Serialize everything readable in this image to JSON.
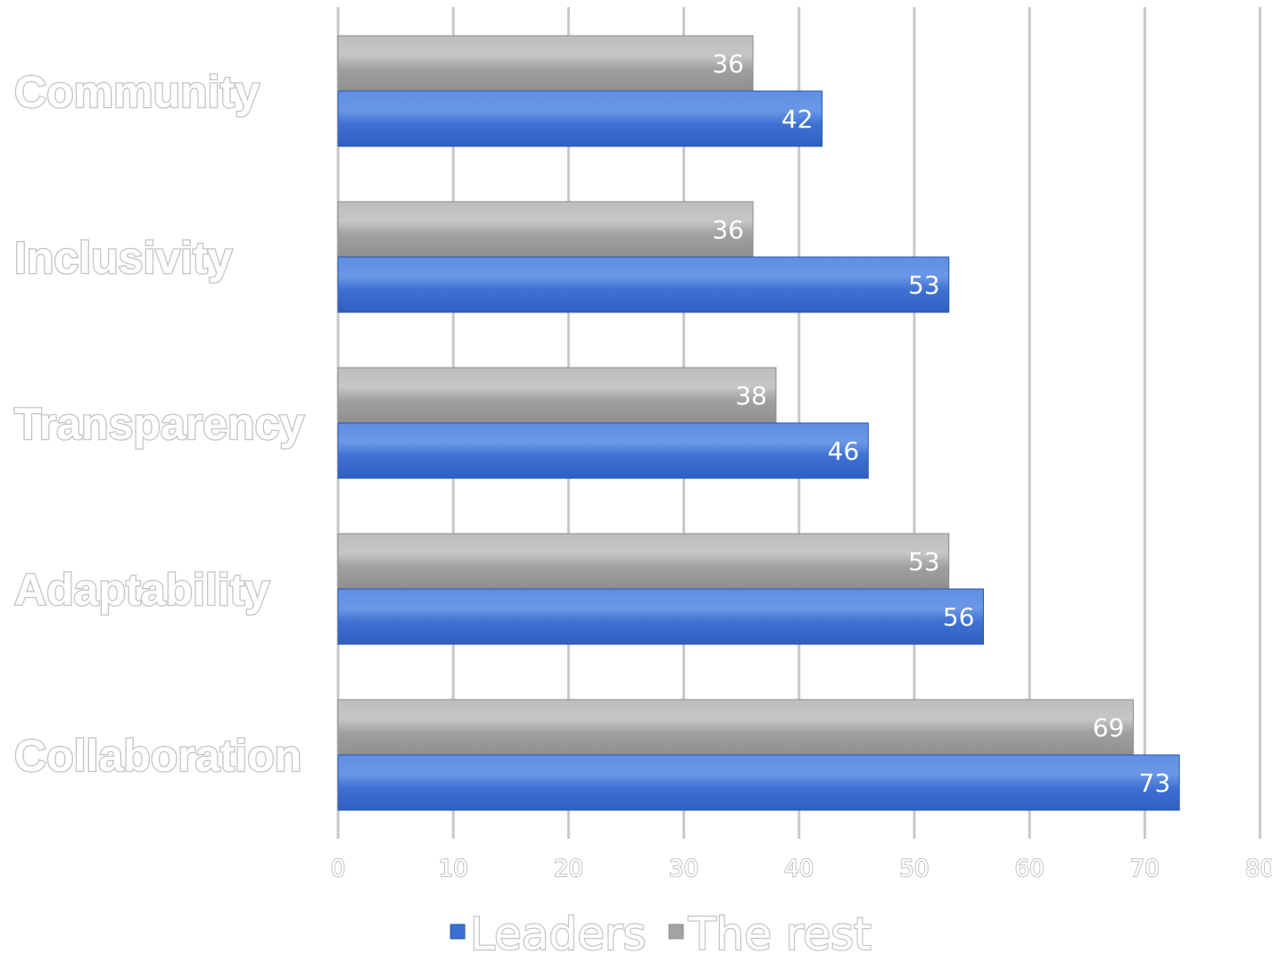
{
  "chart_data": {
    "type": "bar",
    "orientation": "horizontal",
    "categories": [
      "Community",
      "Inclusivity",
      "Transparency",
      "Adaptability",
      "Collaboration"
    ],
    "series": [
      {
        "name": "The rest",
        "values": [
          36,
          36,
          38,
          53,
          69
        ]
      },
      {
        "name": "Leaders",
        "values": [
          42,
          53,
          46,
          56,
          73
        ]
      }
    ],
    "xticks": [
      "0",
      "10",
      "20",
      "30",
      "40",
      "50",
      "60",
      "70",
      "80"
    ],
    "xlim": [
      0,
      80
    ],
    "grid": true,
    "legend": {
      "placement": "bottom",
      "entries": [
        "Leaders",
        "The rest"
      ]
    },
    "data_labels": true
  },
  "colors": {
    "leaders": "#3b6fd0",
    "leaders_highlight": "#6b97e6",
    "the_rest": "#a3a3a3",
    "the_rest_highlight": "#cfcfcf",
    "grid": "#c8c8c8",
    "label_outline": "#c4c4c4"
  }
}
